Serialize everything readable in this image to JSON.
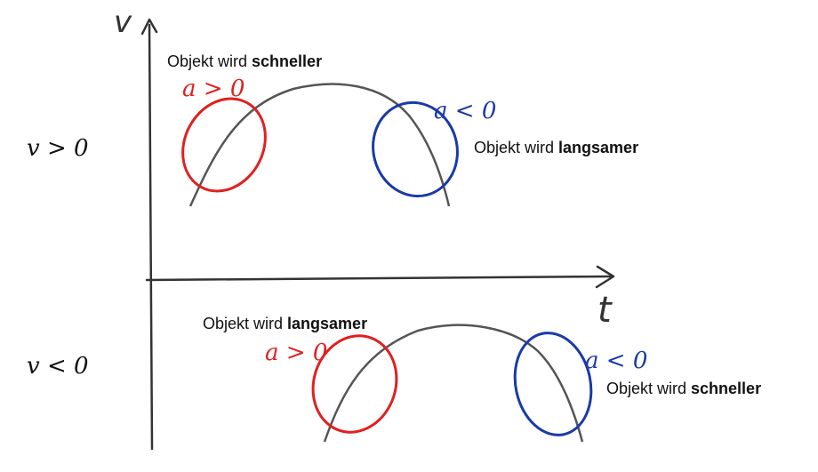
{
  "axes": {
    "y_label": "v",
    "x_label": "t"
  },
  "regions": {
    "upper": {
      "sign_label": "v > 0",
      "left_note_prefix": "Objekt wird ",
      "left_note_bold": "schneller",
      "right_note_prefix": "Objekt wird ",
      "right_note_bold": "langsamer",
      "left_accel": "a > 0",
      "right_accel": "a < 0"
    },
    "lower": {
      "sign_label": "v < 0",
      "left_note_prefix": "Objekt wird ",
      "left_note_bold": "langsamer",
      "right_note_prefix": "Objekt wird ",
      "right_note_bold": "schneller",
      "left_accel": "a > 0",
      "right_accel": "a < 0"
    }
  },
  "colors": {
    "positive_accel": "#e02020",
    "negative_accel": "#1a3aa8",
    "curve": "#555555",
    "axis": "#333333"
  }
}
